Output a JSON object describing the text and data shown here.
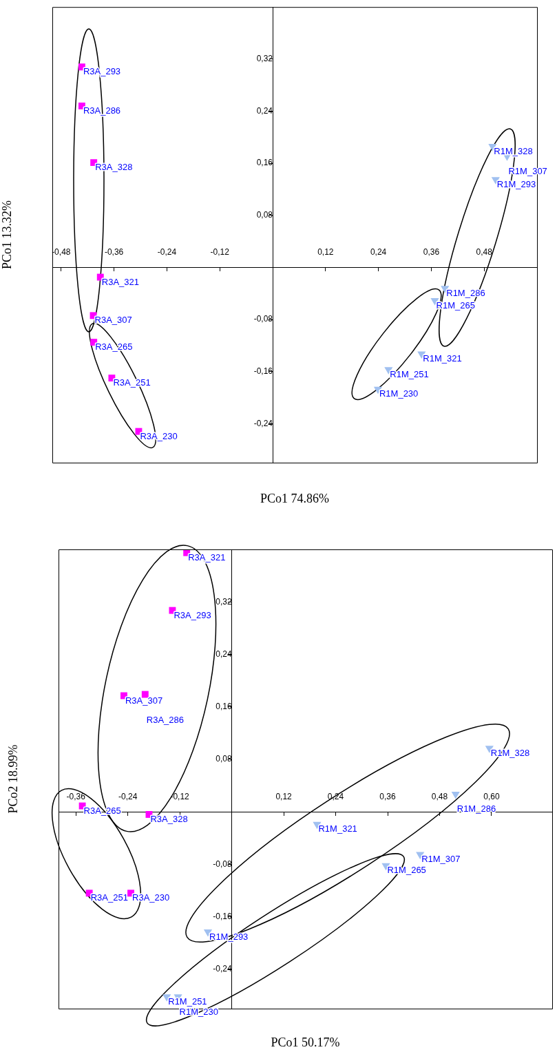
{
  "chart_data": [
    {
      "type": "scatter",
      "xlabel": "PCo1 74.86%",
      "ylabel": "PCo1 13.32%",
      "grid": false,
      "legend": false,
      "xlim": [
        -0.5,
        0.6
      ],
      "ylim": [
        -0.3,
        0.4
      ],
      "xticks": [
        {
          "value": -0.48,
          "label": "-0,48"
        },
        {
          "value": -0.36,
          "label": "-0,36"
        },
        {
          "value": -0.24,
          "label": "-0,24"
        },
        {
          "value": -0.12,
          "label": "-0,12"
        },
        {
          "value": 0.12,
          "label": "0,12"
        },
        {
          "value": 0.24,
          "label": "0,24"
        },
        {
          "value": 0.36,
          "label": "0,36"
        },
        {
          "value": 0.48,
          "label": "0,48"
        }
      ],
      "yticks": [
        {
          "value": -0.24,
          "label": "-0,24"
        },
        {
          "value": -0.16,
          "label": "-0,16"
        },
        {
          "value": -0.08,
          "label": "-0,08"
        },
        {
          "value": 0.08,
          "label": "0,08"
        },
        {
          "value": 0.16,
          "label": "0,16"
        },
        {
          "value": 0.24,
          "label": "0,24"
        },
        {
          "value": 0.32,
          "label": "0,32"
        }
      ],
      "series": [
        {
          "color": "#ff00ff",
          "marker": "square",
          "x": [
            -0.433,
            -0.433,
            -0.406,
            -0.391,
            -0.407,
            -0.406,
            -0.365,
            -0.304
          ],
          "values": [
            0.308,
            0.248,
            0.161,
            -0.015,
            -0.074,
            -0.115,
            -0.17,
            -0.252
          ],
          "value_labels": [
            "R3A_293",
            "R3A_286",
            "R3A_328",
            "R3A_321",
            "R3A_307",
            "R3A_265",
            "R3A_251",
            "R3A_230"
          ]
        },
        {
          "color": "#a0c0f0",
          "marker": "triangle",
          "x": [
            0.499,
            0.532,
            0.506,
            0.391,
            0.368,
            0.338,
            0.263,
            0.239
          ],
          "values": [
            0.186,
            0.171,
            0.135,
            -0.032,
            -0.051,
            -0.133,
            -0.157,
            -0.187
          ],
          "value_labels": [
            "R1M_328",
            "R1M_307",
            "R1M_293",
            "R1M_286",
            "R1M_265",
            "R1M_321",
            "R1M_251",
            "R1M_230"
          ]
        }
      ]
    },
    {
      "type": "scatter",
      "xlabel": "PCo1 50.17%",
      "ylabel": "PCo2 18.99%",
      "grid": false,
      "legend": false,
      "xlim": [
        -0.4,
        0.74
      ],
      "ylim": [
        -0.3,
        0.4
      ],
      "xticks": [
        {
          "value": -0.36,
          "label": "-0,36"
        },
        {
          "value": -0.24,
          "label": "-0,24"
        },
        {
          "value": -0.12,
          "label": "-0,12"
        },
        {
          "value": 0.12,
          "label": "0,12"
        },
        {
          "value": 0.24,
          "label": "0,24"
        },
        {
          "value": 0.36,
          "label": "0,36"
        },
        {
          "value": 0.48,
          "label": "0,48"
        },
        {
          "value": 0.6,
          "label": "0,60"
        }
      ],
      "yticks": [
        {
          "value": -0.24,
          "label": "-0,24"
        },
        {
          "value": -0.16,
          "label": "-0,16"
        },
        {
          "value": -0.08,
          "label": "-0,08"
        },
        {
          "value": 0.08,
          "label": "0,08"
        },
        {
          "value": 0.16,
          "label": "0,16"
        },
        {
          "value": 0.24,
          "label": "0,24"
        },
        {
          "value": 0.32,
          "label": "0,32"
        }
      ],
      "series": [
        {
          "color": "#ff00ff",
          "marker": "square",
          "x": [
            -0.104,
            -0.137,
            -0.249,
            -0.2,
            -0.345,
            -0.191,
            -0.329,
            -0.233
          ],
          "values": [
            0.395,
            0.307,
            0.177,
            0.179,
            0.009,
            -0.004,
            -0.124,
            -0.124
          ],
          "value_labels": [
            "R3A_321",
            "R3A_293",
            "R3A_307",
            "R3A_286",
            "R3A_265",
            "R3A_328",
            "R3A_251",
            "R3A_230"
          ]
        },
        {
          "color": "#a0c0f0",
          "marker": "triangle",
          "x": [
            0.595,
            0.517,
            0.197,
            0.435,
            0.356,
            -0.055,
            -0.15,
            -0.124
          ],
          "values": [
            0.097,
            0.027,
            -0.019,
            -0.065,
            -0.082,
            -0.183,
            -0.282,
            -0.282
          ],
          "value_labels": [
            "R1M_328",
            "R1M_286",
            "R1M_321",
            "R1M_307",
            "R1M_265",
            "R1M_293",
            "R1M_251",
            "R1M_230"
          ]
        }
      ]
    }
  ]
}
